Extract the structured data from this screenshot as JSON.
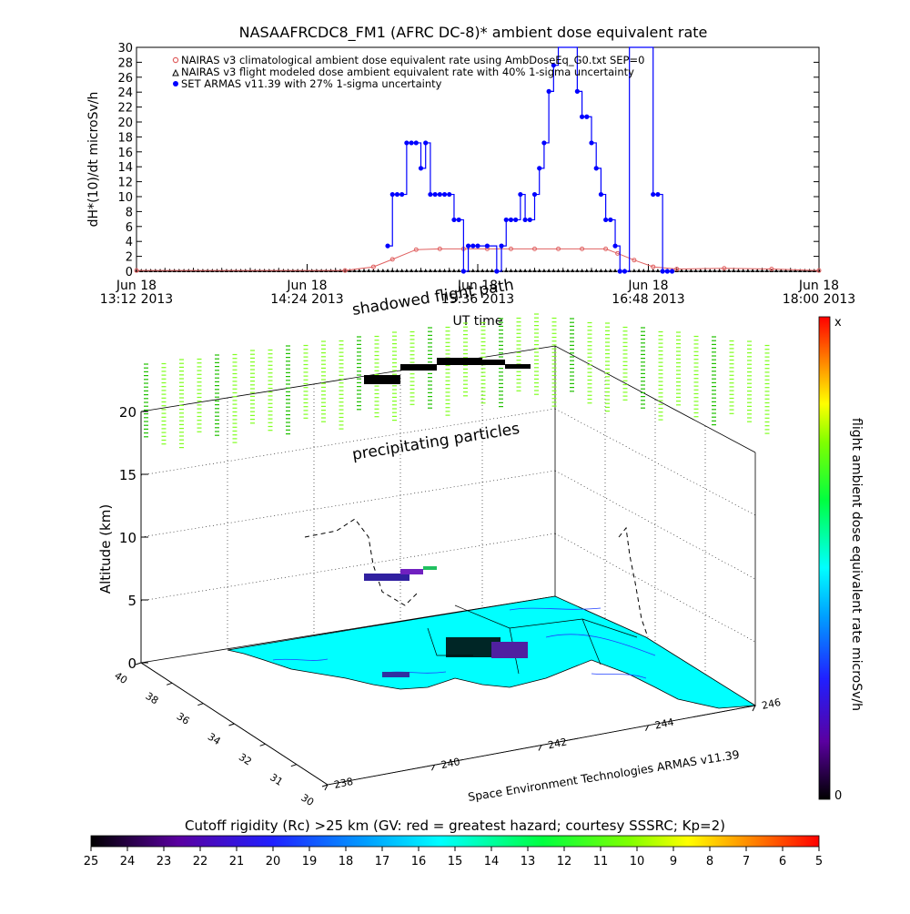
{
  "title": "NASAAFRCDC8_FM1 (AFRC DC-8)* ambient dose equivalent rate",
  "chart_data": [
    {
      "type": "line",
      "title": "NASAAFRCDC8_FM1 (AFRC DC-8)* ambient dose equivalent rate",
      "xlabel": "UT time",
      "ylabel": "dH*(10)/dt microSv/h",
      "ylim": [
        0,
        30
      ],
      "xlim": [
        "13:12",
        "18:00"
      ],
      "y_ticks": [
        0,
        2,
        4,
        6,
        8,
        10,
        12,
        14,
        16,
        18,
        20,
        22,
        24,
        26,
        28,
        30
      ],
      "x_ticks": [
        {
          "line1": "Jun 18",
          "line2": "13:12 2013"
        },
        {
          "line1": "Jun 18",
          "line2": "14:24 2013"
        },
        {
          "line1": "Jun 18",
          "line2": "15:36 2013"
        },
        {
          "line1": "Jun 18",
          "line2": "16:48 2013"
        },
        {
          "line1": "Jun 18",
          "line2": "18:00 2013"
        }
      ],
      "legend_position": "top-left",
      "series": [
        {
          "name": "NAIRAS v3 climatological ambient dose equivalent rate using AmbDoseEq_G0.txt SEP=0",
          "color": "#e06060",
          "marker": "circle-open",
          "x": [
            "13:12",
            "14:40",
            "14:52",
            "15:00",
            "15:10",
            "15:20",
            "15:30",
            "15:40",
            "15:50",
            "16:00",
            "16:10",
            "16:20",
            "16:30",
            "16:35",
            "16:42",
            "16:50",
            "17:00",
            "17:20",
            "17:40",
            "18:00"
          ],
          "y": [
            0.1,
            0.1,
            0.6,
            1.6,
            2.9,
            3.0,
            3.0,
            3.0,
            3.0,
            3.0,
            3.0,
            3.0,
            3.0,
            2.4,
            1.5,
            0.6,
            0.3,
            0.4,
            0.3,
            0.1
          ]
        },
        {
          "name": "NAIRAS v3 flight modeled dose ambient equivalent rate with 40% 1-sigma uncertainty",
          "color": "#000000",
          "marker": "triangle",
          "x": [
            "13:12",
            "18:00"
          ],
          "y": [
            0,
            0
          ]
        },
        {
          "name": "SET ARMAS v11.39 with 27% 1-sigma uncertainty",
          "color": "#0000ff",
          "marker": "circle",
          "x": [
            "14:58",
            "15:00",
            "15:02",
            "15:04",
            "15:06",
            "15:08",
            "15:10",
            "15:12",
            "15:14",
            "15:16",
            "15:18",
            "15:20",
            "15:22",
            "15:24",
            "15:26",
            "15:28",
            "15:30",
            "15:32",
            "15:34",
            "15:36",
            "15:40",
            "15:44",
            "15:46",
            "15:48",
            "15:50",
            "15:52",
            "15:54",
            "15:56",
            "15:58",
            "16:00",
            "16:02",
            "16:04",
            "16:06",
            "16:08",
            "16:10",
            "16:12",
            "16:14",
            "16:16",
            "16:18",
            "16:20",
            "16:22",
            "16:24",
            "16:26",
            "16:28",
            "16:30",
            "16:32",
            "16:34",
            "16:36",
            "16:38",
            "16:40",
            "16:42",
            "16:48",
            "16:50",
            "16:52",
            "16:54",
            "16:56",
            "16:58"
          ],
          "y": [
            3.4,
            10.3,
            10.3,
            10.3,
            17.2,
            17.2,
            17.2,
            13.8,
            17.2,
            10.3,
            10.3,
            10.3,
            10.3,
            10.3,
            6.9,
            6.9,
            0,
            3.4,
            3.4,
            3.4,
            3.4,
            0,
            3.4,
            6.9,
            6.9,
            6.9,
            10.3,
            6.9,
            6.9,
            10.3,
            13.8,
            17.2,
            24.1,
            27.6,
            30,
            30,
            30,
            30,
            24.1,
            20.7,
            20.7,
            17.2,
            13.8,
            10.3,
            6.9,
            6.9,
            3.4,
            0,
            0,
            30,
            30,
            30,
            10.3,
            10.3,
            0,
            0,
            0
          ]
        }
      ]
    },
    {
      "type": "scatter",
      "title": "",
      "zlabel": "Altitude (km)",
      "z_ticks": [
        0,
        5,
        10,
        15,
        20
      ],
      "x_ticks": [
        238,
        240,
        242,
        244,
        246
      ],
      "y_ticks": [
        30,
        31,
        32,
        34,
        36,
        38,
        40
      ],
      "annotations": [
        "shadowed flight path",
        "precipitating particles"
      ],
      "credit": "Space Environment Technologies ARMAS v11.39",
      "colorbar": {
        "label": "flight ambient dose equivalent rate microSv/h",
        "top_label": "x",
        "bottom_label": "0"
      }
    },
    {
      "type": "heatmap",
      "title": "Cutoff rigidity (Rc) >25 km (GV: red = greatest hazard; courtesy SSSRC; Kp=2)",
      "ticks": [
        25,
        24,
        23,
        22,
        21,
        20,
        19,
        18,
        17,
        16,
        15,
        14,
        13,
        12,
        11,
        10,
        9,
        8,
        7,
        6,
        5
      ]
    }
  ]
}
